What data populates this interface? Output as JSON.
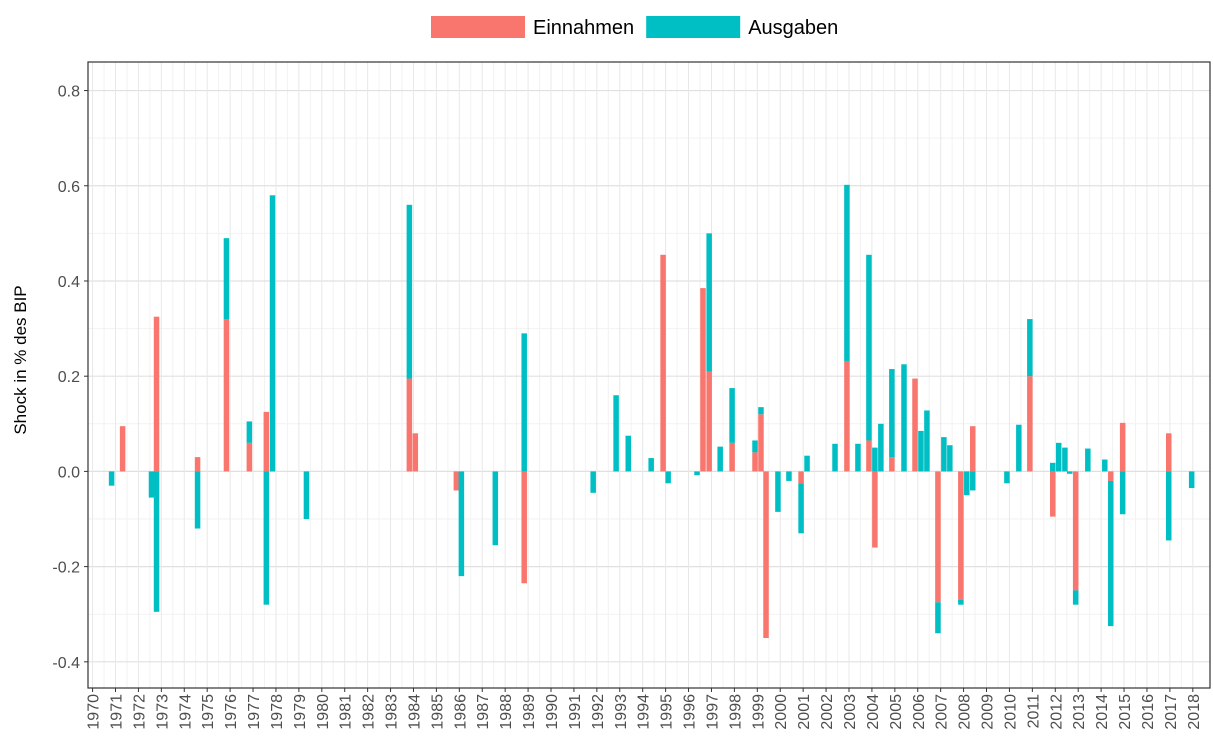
{
  "chart_data": {
    "type": "bar",
    "stacked": true,
    "ylabel": "Shock in % des BIP",
    "legend": "top",
    "grid": true,
    "xlim": [
      1969.8,
      2018.75
    ],
    "xticks": [
      1970,
      1971,
      1972,
      1973,
      1974,
      1975,
      1976,
      1977,
      1978,
      1979,
      1980,
      1981,
      1982,
      1983,
      1984,
      1985,
      1986,
      1987,
      1988,
      1989,
      1990,
      1991,
      1992,
      1993,
      1994,
      1995,
      1996,
      1997,
      1998,
      1999,
      2000,
      2001,
      2002,
      2003,
      2004,
      2005,
      2006,
      2007,
      2008,
      2009,
      2010,
      2011,
      2012,
      2013,
      2014,
      2015,
      2016,
      2017,
      2018
    ],
    "ylim": [
      -0.455,
      0.86
    ],
    "yticks": [
      -0.4,
      -0.2,
      {
        "value": 0,
        "label": "0.0"
      },
      0.2,
      0.4,
      0.6,
      0.8
    ],
    "x": [
      1970.83,
      1971.31,
      1972.57,
      1972.79,
      1974.58,
      1975.84,
      1976.84,
      1977.58,
      1977.85,
      1979.33,
      1983.82,
      1984.08,
      1985.87,
      1986.09,
      1987.57,
      1988.83,
      1991.84,
      1992.84,
      1993.37,
      1994.37,
      1994.89,
      1995.11,
      1996.37,
      1996.63,
      1996.9,
      1997.38,
      1997.9,
      1998.9,
      1999.16,
      1999.38,
      1999.9,
      2000.38,
      2000.91,
      2001.17,
      2002.39,
      2002.91,
      2003.39,
      2003.87,
      2004.13,
      2004.39,
      2004.87,
      2005.4,
      2005.88,
      2006.14,
      2006.4,
      2006.88,
      2007.14,
      2007.4,
      2007.88,
      2008.14,
      2008.4,
      2009.89,
      2010.41,
      2010.89,
      2011.89,
      2012.15,
      2012.42,
      2012.63,
      2012.89,
      2013.42,
      2014.16,
      2014.42,
      2014.94,
      2016.95,
      2017.95
    ],
    "series": [
      {
        "name": "Einnahmen",
        "color": "#f8766d",
        "values": [
          null,
          0.095,
          null,
          0.325,
          0.03,
          0.32,
          0.06,
          0.125,
          null,
          null,
          0.195,
          0.08,
          -0.04,
          null,
          null,
          -0.235,
          null,
          null,
          null,
          null,
          0.455,
          null,
          null,
          0.385,
          0.21,
          null,
          0.06,
          0.04,
          0.12,
          -0.35,
          null,
          null,
          -0.025,
          null,
          null,
          0.232,
          null,
          0.065,
          -0.16,
          null,
          0.03,
          null,
          0.195,
          null,
          null,
          -0.275,
          null,
          null,
          -0.27,
          null,
          0.095,
          null,
          null,
          0.2,
          -0.095,
          null,
          null,
          null,
          -0.25,
          null,
          null,
          -0.02,
          0.102,
          0.08,
          null
        ]
      },
      {
        "name": "Ausgaben",
        "color": "#00bfc4",
        "values": [
          -0.03,
          null,
          -0.055,
          -0.295,
          -0.12,
          0.17,
          0.045,
          -0.28,
          0.58,
          -0.1,
          0.365,
          null,
          null,
          -0.22,
          -0.155,
          0.29,
          -0.045,
          0.16,
          0.075,
          0.028,
          null,
          -0.025,
          -0.008,
          null,
          0.29,
          0.052,
          0.115,
          0.025,
          0.015,
          null,
          -0.085,
          -0.02,
          -0.105,
          0.033,
          0.058,
          0.37,
          0.058,
          0.39,
          0.05,
          0.1,
          0.185,
          0.225,
          null,
          0.085,
          0.128,
          -0.065,
          0.072,
          0.055,
          -0.01,
          -0.05,
          -0.04,
          -0.025,
          0.098,
          0.12,
          0.018,
          0.06,
          0.05,
          -0.005,
          -0.03,
          0.048,
          0.025,
          -0.305,
          -0.09,
          -0.145,
          -0.035
        ]
      }
    ]
  }
}
